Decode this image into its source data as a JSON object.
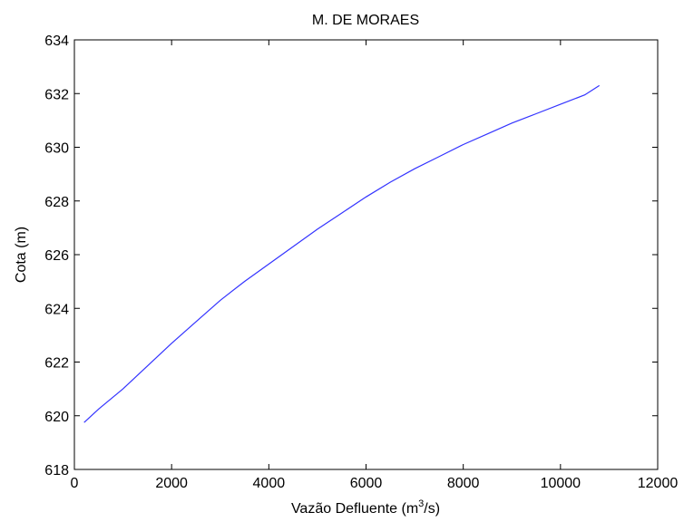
{
  "chart_data": {
    "type": "line",
    "title": "M. DE MORAES",
    "xlabel": "Vazão Defluente (m",
    "xlabel_sup": "3",
    "xlabel_suffix": "/s)",
    "ylabel": "Cota (m)",
    "xlim": [
      0,
      12000
    ],
    "ylim": [
      618,
      634
    ],
    "xticks": [
      0,
      2000,
      4000,
      6000,
      8000,
      10000,
      12000
    ],
    "yticks": [
      618,
      620,
      622,
      624,
      626,
      628,
      630,
      632,
      634
    ],
    "grid": false,
    "series": [
      {
        "color": "#3333ff",
        "x": [
          200,
          500,
          1000,
          1500,
          2000,
          2500,
          3000,
          3500,
          4000,
          4500,
          5000,
          5500,
          6000,
          6500,
          7000,
          7500,
          8000,
          8500,
          9000,
          9500,
          10000,
          10500,
          10800
        ],
        "y": [
          619.75,
          620.25,
          621.0,
          621.85,
          622.7,
          623.5,
          624.3,
          625.0,
          625.65,
          626.3,
          626.95,
          627.55,
          628.15,
          628.7,
          629.2,
          629.65,
          630.1,
          630.5,
          630.9,
          631.25,
          631.6,
          631.95,
          632.3
        ]
      }
    ]
  }
}
